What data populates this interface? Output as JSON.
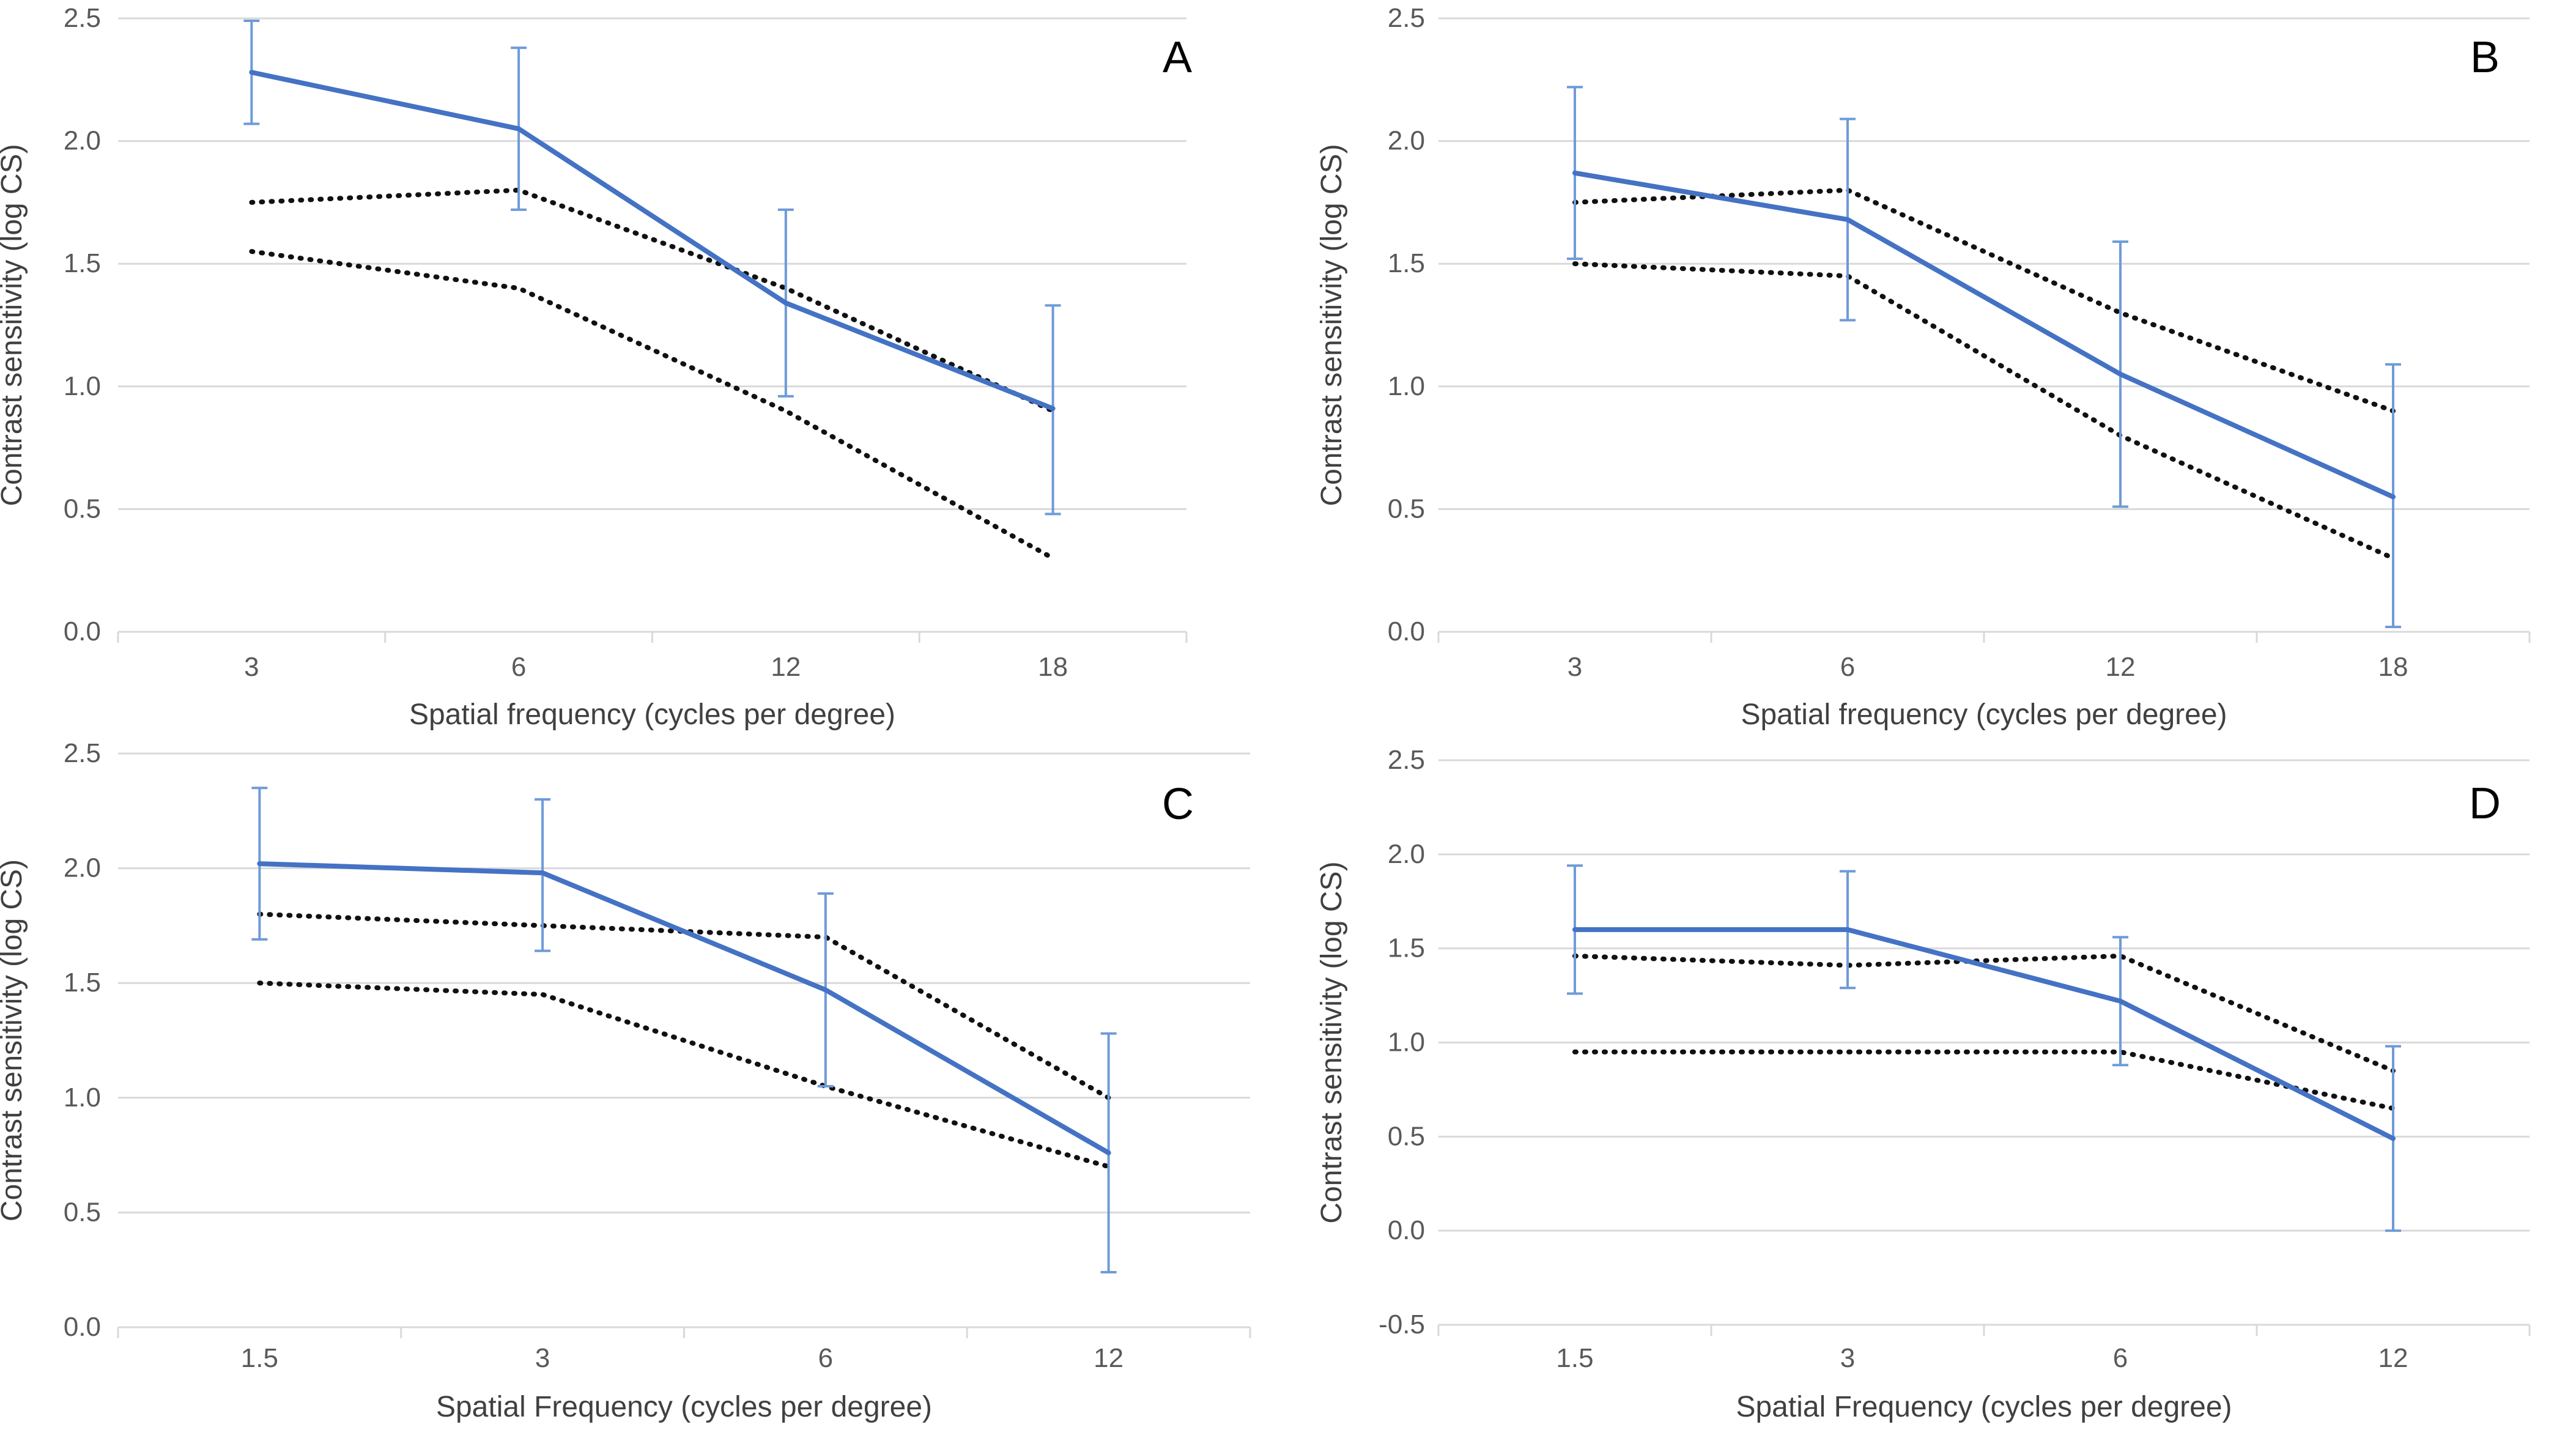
{
  "colors": {
    "mean": "#4472C4",
    "errorbar": "#6E9BD8",
    "norm": "#111111",
    "grid": "#D9D9D9",
    "tick_text": "#595959",
    "label_text": "#404040",
    "panel_label": "#000000"
  },
  "chart_data": [
    {
      "panel": "A",
      "type": "line",
      "xlabel": "Spatial frequency (cycles per degree)",
      "ylabel": "Contrast sensitivity (log CS)",
      "categories": [
        "3",
        "6",
        "12",
        "18"
      ],
      "ylim": [
        0,
        2.5
      ],
      "yticks": [
        "0.0",
        "0.5",
        "1.0",
        "1.5",
        "2.0",
        "2.5"
      ],
      "series": [
        {
          "name": "mean",
          "style": "solid",
          "values": [
            2.28,
            2.05,
            1.34,
            0.91
          ],
          "error_high": [
            2.49,
            2.38,
            1.72,
            1.33
          ],
          "error_low": [
            2.07,
            1.72,
            0.96,
            0.48
          ]
        },
        {
          "name": "normal-upper",
          "style": "dotted",
          "values": [
            1.75,
            1.8,
            1.4,
            0.9
          ]
        },
        {
          "name": "normal-lower",
          "style": "dotted",
          "values": [
            1.55,
            1.4,
            0.9,
            0.3
          ]
        }
      ]
    },
    {
      "panel": "B",
      "type": "line",
      "xlabel": "Spatial frequency (cycles per degree)",
      "ylabel": "Contrast sensitivity (log CS)",
      "categories": [
        "3",
        "6",
        "12",
        "18"
      ],
      "ylim": [
        0,
        2.5
      ],
      "yticks": [
        "0.0",
        "0.5",
        "1.0",
        "1.5",
        "2.0",
        "2.5"
      ],
      "series": [
        {
          "name": "mean",
          "style": "solid",
          "values": [
            1.87,
            1.68,
            1.05,
            0.55
          ],
          "error_high": [
            2.22,
            2.09,
            1.59,
            1.09
          ],
          "error_low": [
            1.52,
            1.27,
            0.51,
            0.02
          ]
        },
        {
          "name": "normal-upper",
          "style": "dotted",
          "values": [
            1.75,
            1.8,
            1.3,
            0.9
          ]
        },
        {
          "name": "normal-lower",
          "style": "dotted",
          "values": [
            1.5,
            1.45,
            0.8,
            0.3
          ]
        }
      ]
    },
    {
      "panel": "C",
      "type": "line",
      "xlabel": "Spatial Frequency (cycles per degree)",
      "ylabel": "Contrast sensitivity (log CS)",
      "categories": [
        "1.5",
        "3",
        "6",
        "12"
      ],
      "ylim": [
        0,
        2.5
      ],
      "yticks": [
        "0.0",
        "0.5",
        "1.0",
        "1.5",
        "2.0",
        "2.5"
      ],
      "series": [
        {
          "name": "mean",
          "style": "solid",
          "values": [
            2.02,
            1.98,
            1.47,
            0.76
          ],
          "error_high": [
            2.35,
            2.3,
            1.89,
            1.28
          ],
          "error_low": [
            1.69,
            1.64,
            1.05,
            0.24
          ]
        },
        {
          "name": "normal-upper",
          "style": "dotted",
          "values": [
            1.8,
            1.75,
            1.7,
            1.0
          ]
        },
        {
          "name": "normal-lower",
          "style": "dotted",
          "values": [
            1.5,
            1.45,
            1.05,
            0.7
          ]
        }
      ]
    },
    {
      "panel": "D",
      "type": "line",
      "xlabel": "Spatial Frequency (cycles per degree)",
      "ylabel": "Contrast sensitivity (log CS)",
      "categories": [
        "1.5",
        "3",
        "6",
        "12"
      ],
      "ylim": [
        -0.5,
        2.5
      ],
      "yticks": [
        "-0.5",
        "0.0",
        "0.5",
        "1.0",
        "1.5",
        "2.0",
        "2.5"
      ],
      "series": [
        {
          "name": "mean",
          "style": "solid",
          "values": [
            1.6,
            1.6,
            1.22,
            0.49
          ],
          "error_high": [
            1.94,
            1.91,
            1.56,
            0.98
          ],
          "error_low": [
            1.26,
            1.29,
            0.88,
            0.0
          ]
        },
        {
          "name": "normal-upper",
          "style": "dotted",
          "values": [
            1.46,
            1.41,
            1.46,
            0.85
          ]
        },
        {
          "name": "normal-lower",
          "style": "dotted",
          "values": [
            0.95,
            0.95,
            0.95,
            0.65
          ]
        }
      ]
    }
  ]
}
